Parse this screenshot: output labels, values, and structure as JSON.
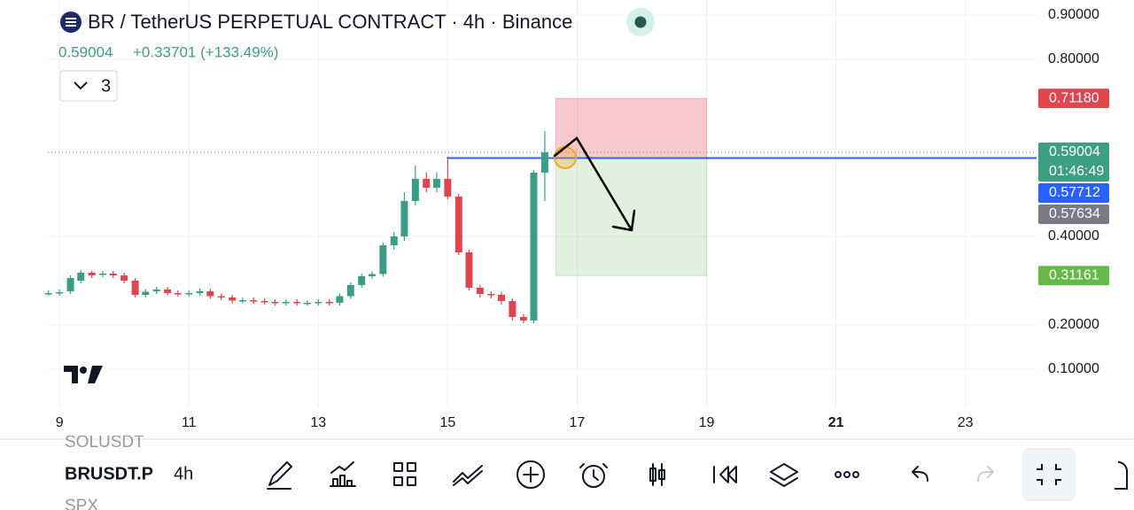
{
  "header": {
    "title": "BR / TetherUS PERPETUAL CONTRACT · 4h · Binance",
    "price": "0.59004",
    "change": "+0.33701 (+133.49%)",
    "indicators": "3"
  },
  "chart_data": {
    "type": "candlestick",
    "x": [
      8.83,
      9,
      9.17,
      9.33,
      9.5,
      9.67,
      9.83,
      10,
      10.17,
      10.33,
      10.5,
      10.67,
      10.83,
      11,
      11.17,
      11.33,
      11.5,
      11.67,
      11.83,
      12,
      12.17,
      12.33,
      12.5,
      12.67,
      12.83,
      13,
      13.17,
      13.33,
      13.5,
      13.67,
      13.83,
      14,
      14.17,
      14.33,
      14.5,
      14.67,
      14.83,
      15,
      15.17,
      15.33,
      15.5,
      15.67,
      15.83,
      16,
      16.17,
      16.33,
      16.5
    ],
    "open": [
      0.272,
      0.272,
      0.276,
      0.3,
      0.318,
      0.314,
      0.316,
      0.312,
      0.3,
      0.268,
      0.276,
      0.28,
      0.272,
      0.27,
      0.272,
      0.276,
      0.265,
      0.262,
      0.255,
      0.256,
      0.254,
      0.252,
      0.25,
      0.252,
      0.25,
      0.25,
      0.252,
      0.25,
      0.265,
      0.29,
      0.31,
      0.315,
      0.38,
      0.4,
      0.48,
      0.53,
      0.51,
      0.53,
      0.49,
      0.364,
      0.284,
      0.27,
      0.268,
      0.254,
      0.218,
      0.21,
      0.544
    ],
    "high": [
      0.278,
      0.28,
      0.312,
      0.324,
      0.322,
      0.322,
      0.322,
      0.318,
      0.306,
      0.281,
      0.286,
      0.286,
      0.278,
      0.278,
      0.282,
      0.282,
      0.271,
      0.268,
      0.262,
      0.262,
      0.26,
      0.258,
      0.258,
      0.258,
      0.256,
      0.258,
      0.258,
      0.271,
      0.296,
      0.316,
      0.321,
      0.386,
      0.41,
      0.5,
      0.56,
      0.545,
      0.545,
      0.58,
      0.496,
      0.37,
      0.29,
      0.276,
      0.274,
      0.26,
      0.224,
      0.55,
      0.638
    ],
    "low": [
      0.266,
      0.266,
      0.27,
      0.294,
      0.306,
      0.308,
      0.306,
      0.294,
      0.262,
      0.262,
      0.27,
      0.266,
      0.264,
      0.264,
      0.266,
      0.259,
      0.256,
      0.249,
      0.249,
      0.248,
      0.246,
      0.244,
      0.244,
      0.244,
      0.244,
      0.244,
      0.244,
      0.244,
      0.259,
      0.284,
      0.304,
      0.309,
      0.37,
      0.39,
      0.47,
      0.5,
      0.5,
      0.484,
      0.358,
      0.278,
      0.262,
      0.26,
      0.246,
      0.21,
      0.204,
      0.204,
      0.48
    ],
    "close": [
      0.272,
      0.274,
      0.306,
      0.318,
      0.312,
      0.316,
      0.312,
      0.3,
      0.268,
      0.275,
      0.28,
      0.272,
      0.27,
      0.272,
      0.276,
      0.265,
      0.262,
      0.255,
      0.256,
      0.254,
      0.252,
      0.25,
      0.252,
      0.25,
      0.25,
      0.252,
      0.25,
      0.265,
      0.29,
      0.31,
      0.315,
      0.38,
      0.4,
      0.48,
      0.53,
      0.51,
      0.53,
      0.49,
      0.364,
      0.284,
      0.27,
      0.268,
      0.254,
      0.218,
      0.21,
      0.544,
      0.59004
    ],
    "up_color": "#3a9e86",
    "down_color": "#e0444c",
    "xlim": [
      8.82,
      24.1
    ],
    "xticks": [
      9,
      11,
      13,
      15,
      17,
      19,
      21,
      23
    ],
    "ylim": [
      0.014,
      0.934
    ],
    "yticks": [
      {
        "value": 0.9,
        "label": "0.90000"
      },
      {
        "value": 0.8,
        "label": "0.80000"
      },
      {
        "value": 0.4,
        "label": "0.40000"
      },
      {
        "value": 0.2,
        "label": "0.20000"
      },
      {
        "value": 0.1,
        "label": "0.10000"
      }
    ],
    "grid": true,
    "position": {
      "x": [
        16.67,
        19
      ],
      "stop": 0.7118,
      "entry": 0.57712,
      "target": 0.31161
    },
    "entry_line": {
      "x": 15,
      "value": 0.57712,
      "color": "#2962ff"
    },
    "last_price": 0.59004,
    "price_labels": [
      {
        "value": 0.7118,
        "label": "0.71180",
        "color": "#e04650"
      },
      {
        "value": 0.59004,
        "label": "0.59004",
        "countdown": "01:46:49",
        "color": "#3d9e82"
      },
      {
        "value": 0.57712,
        "label": "0.57712",
        "color": "#2962ff"
      },
      {
        "value": 0.57634,
        "label": "0.57634",
        "color": "#787b86"
      },
      {
        "value": 0.31161,
        "label": "0.31161",
        "color": "#67b84a"
      }
    ]
  },
  "toolbar": {
    "symbols": [
      "SOLUSDT",
      "BRUSDT.P",
      "SPX"
    ],
    "interval": "4h"
  }
}
